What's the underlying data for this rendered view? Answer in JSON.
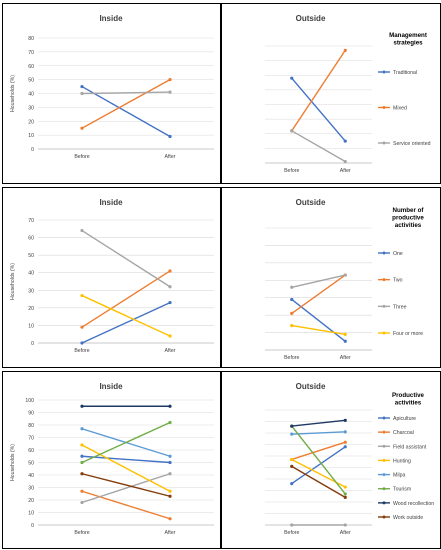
{
  "chart_data": [
    {
      "type": "line",
      "title": "Inside",
      "ylabel": "Households (%)",
      "categories": [
        "Before",
        "After"
      ],
      "ylim": [
        0,
        80
      ],
      "yticks": [
        0,
        10,
        20,
        30,
        40,
        50,
        60,
        70,
        80
      ],
      "grid": true,
      "series": [
        {
          "name": "Traditional",
          "color": "#4472C4",
          "values": [
            45,
            9
          ]
        },
        {
          "name": "Mixed",
          "color": "#ED7D31",
          "values": [
            15,
            50
          ]
        },
        {
          "name": "Service oriented",
          "color": "#A5A5A5",
          "values": [
            40,
            41
          ]
        }
      ]
    },
    {
      "type": "line",
      "title": "Outside",
      "categories": [
        "Before",
        "After"
      ],
      "ylim": [
        0,
        80
      ],
      "grid": true,
      "legend_title": "Management strategies",
      "legend_position": "right",
      "series": [
        {
          "name": "Traditional",
          "color": "#4472C4",
          "values": [
            58,
            15
          ]
        },
        {
          "name": "Mixed",
          "color": "#ED7D31",
          "values": [
            22,
            77
          ]
        },
        {
          "name": "Service oriented",
          "color": "#A5A5A5",
          "values": [
            22,
            1
          ]
        }
      ]
    },
    {
      "type": "line",
      "title": "Inside",
      "ylabel": "Households (%)",
      "categories": [
        "Before",
        "After"
      ],
      "ylim": [
        0,
        70
      ],
      "yticks": [
        0,
        10,
        20,
        30,
        40,
        50,
        60,
        70
      ],
      "grid": true,
      "series": [
        {
          "name": "One",
          "color": "#4472C4",
          "values": [
            0,
            23
          ]
        },
        {
          "name": "Two",
          "color": "#ED7D31",
          "values": [
            9,
            41
          ]
        },
        {
          "name": "Three",
          "color": "#A5A5A5",
          "values": [
            64,
            32
          ]
        },
        {
          "name": "Four or more",
          "color": "#FFC000",
          "values": [
            27,
            4
          ]
        }
      ]
    },
    {
      "type": "line",
      "title": "Outside",
      "categories": [
        "Before",
        "After"
      ],
      "ylim": [
        0,
        70
      ],
      "grid": true,
      "legend_title": "Number of productive activities",
      "legend_position": "right",
      "series": [
        {
          "name": "One",
          "color": "#4472C4",
          "values": [
            29,
            5
          ]
        },
        {
          "name": "Two",
          "color": "#ED7D31",
          "values": [
            21,
            43
          ]
        },
        {
          "name": "Three",
          "color": "#A5A5A5",
          "values": [
            36,
            43
          ]
        },
        {
          "name": "Four or more",
          "color": "#FFC000",
          "values": [
            14,
            9
          ]
        }
      ]
    },
    {
      "type": "line",
      "title": "Inside",
      "ylabel": "Households (%)",
      "categories": [
        "Before",
        "After"
      ],
      "ylim": [
        0,
        100
      ],
      "yticks": [
        0,
        10,
        20,
        30,
        40,
        50,
        60,
        70,
        80,
        90,
        100
      ],
      "grid": true,
      "series": [
        {
          "name": "Apiculture",
          "color": "#4472C4",
          "values": [
            55,
            50
          ]
        },
        {
          "name": "Charcoal",
          "color": "#ED7D31",
          "values": [
            27,
            5
          ]
        },
        {
          "name": "Field assistant",
          "color": "#A5A5A5",
          "values": [
            18,
            41
          ]
        },
        {
          "name": "Hunting",
          "color": "#FFC000",
          "values": [
            64,
            27
          ]
        },
        {
          "name": "Milpa",
          "color": "#5B9BD5",
          "values": [
            77,
            55
          ]
        },
        {
          "name": "Tourism",
          "color": "#70AD47",
          "values": [
            50,
            82
          ]
        },
        {
          "name": "Wood recollection",
          "color": "#203864",
          "values": [
            95,
            95
          ]
        },
        {
          "name": "Work outside",
          "color": "#843C0C",
          "values": [
            41,
            23
          ]
        }
      ]
    },
    {
      "type": "line",
      "title": "Outside",
      "categories": [
        "Before",
        "After"
      ],
      "ylim": [
        0,
        100
      ],
      "grid": true,
      "legend_title": "Productive activities",
      "legend_position": "right",
      "series": [
        {
          "name": "Apiculture",
          "color": "#4472C4",
          "values": [
            36,
            68
          ]
        },
        {
          "name": "Charcoal",
          "color": "#ED7D31",
          "values": [
            57,
            72
          ]
        },
        {
          "name": "Field assistant",
          "color": "#A5A5A5",
          "values": [
            0,
            0
          ]
        },
        {
          "name": "Hunting",
          "color": "#FFC000",
          "values": [
            57,
            33
          ]
        },
        {
          "name": "Milpa",
          "color": "#5B9BD5",
          "values": [
            79,
            81
          ]
        },
        {
          "name": "Tourism",
          "color": "#70AD47",
          "values": [
            86,
            27
          ]
        },
        {
          "name": "Wood recollection",
          "color": "#203864",
          "values": [
            86,
            91
          ]
        },
        {
          "name": "Work outside",
          "color": "#843C0C",
          "values": [
            51,
            24
          ]
        }
      ]
    }
  ]
}
